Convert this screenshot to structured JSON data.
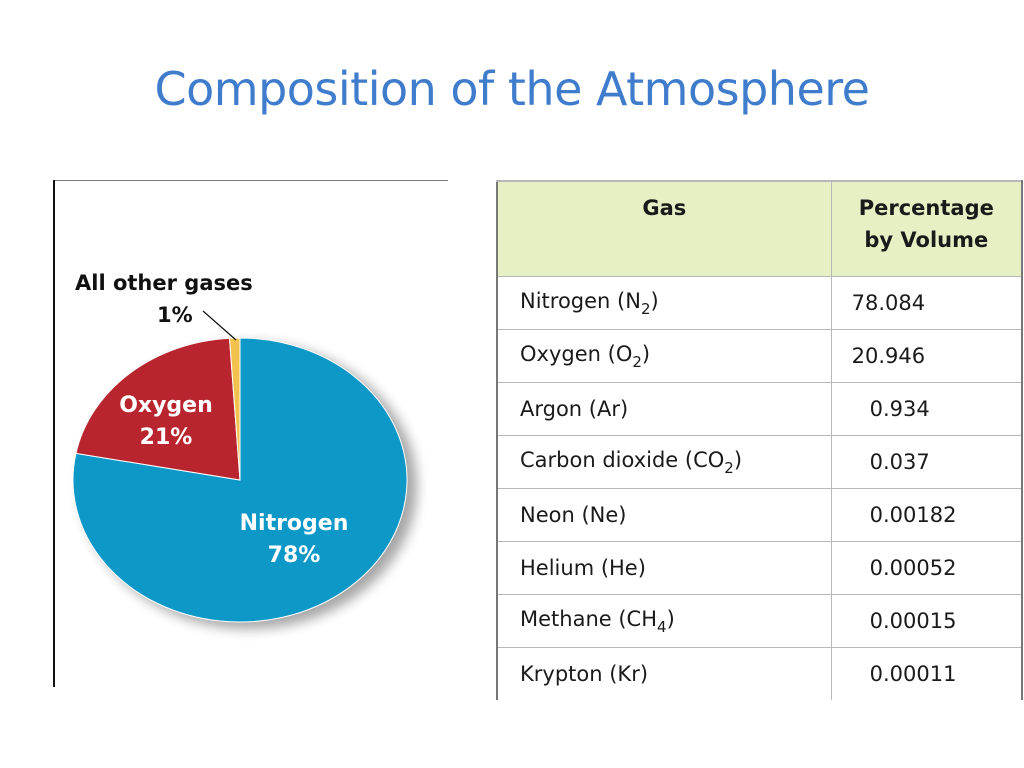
{
  "slide": {
    "title": "Composition of the Atmosphere"
  },
  "colors": {
    "title": "#3f7ccc",
    "nitrogen": "#0e98c8",
    "oxygen": "#b8252f",
    "other": "#f2c14e",
    "table_header_bg": "#e6f0c4"
  },
  "chart_data": [
    {
      "type": "pie",
      "categories": [
        "Nitrogen",
        "Oxygen",
        "All other gases"
      ],
      "values": [
        78,
        21,
        1
      ],
      "unit": "%",
      "data_labels": [
        {
          "name": "Nitrogen",
          "value": "78%"
        },
        {
          "name": "Oxygen",
          "value": "21%"
        },
        {
          "name": "All other gases",
          "value": "1%"
        }
      ]
    },
    {
      "type": "table",
      "columns": [
        "Gas",
        "Percentage by Volume"
      ],
      "rows": [
        {
          "gas": "Nitrogen (N",
          "sub": "2",
          "tail": ")",
          "value": "78.084",
          "indent": false
        },
        {
          "gas": "Oxygen (O",
          "sub": "2",
          "tail": ")",
          "value": "20.946",
          "indent": false
        },
        {
          "gas": "Argon (Ar)",
          "sub": "",
          "tail": "",
          "value": "0.934",
          "indent": true
        },
        {
          "gas": "Carbon dioxide (CO",
          "sub": "2",
          "tail": ")",
          "value": "0.037",
          "indent": true
        },
        {
          "gas": "Neon (Ne)",
          "sub": "",
          "tail": "",
          "value": "0.00182",
          "indent": true
        },
        {
          "gas": "Helium (He)",
          "sub": "",
          "tail": "",
          "value": "0.00052",
          "indent": true
        },
        {
          "gas": "Methane (CH",
          "sub": "4",
          "tail": ")",
          "value": "0.00015",
          "indent": true
        },
        {
          "gas": "Krypton (Kr)",
          "sub": "",
          "tail": "",
          "value": "0.00011",
          "indent": true
        }
      ]
    }
  ],
  "table_header": {
    "gas": "Gas",
    "pct_line1": "Percentage",
    "pct_line2": "by Volume"
  }
}
